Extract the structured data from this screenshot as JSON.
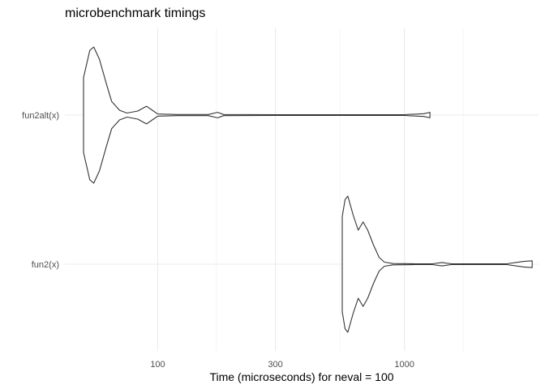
{
  "chart_data": {
    "type": "violin",
    "title": "microbenchmark timings",
    "xlabel": "Time (microseconds) for neval = 100",
    "ylabel": "",
    "x_scale": "log10",
    "x_range": [
      42,
      3500
    ],
    "x_ticks": [
      100,
      300,
      1000
    ],
    "x_tick_labels": [
      "100",
      "300",
      "1000"
    ],
    "x_minor_gridlines": [
      173,
      548,
      1732
    ],
    "grid": true,
    "categories": [
      "fun2alt(x)",
      "fun2(x)"
    ],
    "series": [
      {
        "category": "fun2alt(x)",
        "min": 50,
        "max": 1270,
        "density": [
          [
            50,
            0.55
          ],
          [
            53,
            0.95
          ],
          [
            55,
            1.0
          ],
          [
            58,
            0.82
          ],
          [
            62,
            0.45
          ],
          [
            65,
            0.2
          ],
          [
            70,
            0.07
          ],
          [
            75,
            0.03
          ],
          [
            83,
            0.06
          ],
          [
            90,
            0.13
          ],
          [
            96,
            0.06
          ],
          [
            100,
            0.015
          ],
          [
            120,
            0.008
          ],
          [
            160,
            0.008
          ],
          [
            175,
            0.04
          ],
          [
            185,
            0.008
          ],
          [
            300,
            0.006
          ],
          [
            600,
            0.006
          ],
          [
            1000,
            0.006
          ],
          [
            1200,
            0.02
          ],
          [
            1270,
            0.04
          ]
        ]
      },
      {
        "category": "fun2(x)",
        "min": 560,
        "max": 3300,
        "density": [
          [
            560,
            0.7
          ],
          [
            575,
            0.95
          ],
          [
            590,
            1.0
          ],
          [
            620,
            0.72
          ],
          [
            650,
            0.5
          ],
          [
            680,
            0.62
          ],
          [
            710,
            0.5
          ],
          [
            750,
            0.28
          ],
          [
            790,
            0.1
          ],
          [
            830,
            0.03
          ],
          [
            900,
            0.01
          ],
          [
            1100,
            0.006
          ],
          [
            1300,
            0.006
          ],
          [
            1420,
            0.025
          ],
          [
            1550,
            0.006
          ],
          [
            2600,
            0.006
          ],
          [
            3050,
            0.04
          ],
          [
            3300,
            0.05
          ]
        ]
      }
    ]
  }
}
